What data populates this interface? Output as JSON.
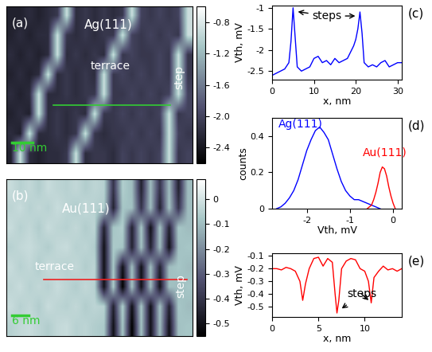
{
  "chart_data": [
    {
      "type": "heatmap",
      "panel": "(a)",
      "title": "Ag(111)",
      "annotations": [
        "terrace",
        "step",
        "10 nm"
      ],
      "tick_labels": false,
      "cells": [
        [
          -2.3,
          -2.3,
          -2.2,
          -2.3,
          -2.2,
          -2.1,
          -0.9,
          -2.2,
          -2.1,
          -2.2,
          -2.1,
          -2.2,
          -2.1,
          -0.9,
          -2.0,
          -2.1,
          -2.0,
          -2.1,
          -2.0,
          -0.9
        ],
        [
          -2.3,
          -2.2,
          -2.3,
          -2.2,
          -2.2,
          -0.9,
          -2.1,
          -2.2,
          -2.1,
          -2.2,
          -2.1,
          -2.1,
          -0.9,
          -2.0,
          -2.1,
          -2.0,
          -2.1,
          -2.0,
          -2.1,
          -0.9
        ],
        [
          -2.2,
          -2.3,
          -2.2,
          -2.3,
          -2.2,
          -0.9,
          -2.2,
          -2.1,
          -2.2,
          -2.1,
          -2.2,
          -0.9,
          -2.1,
          -2.0,
          -2.1,
          -2.1,
          -2.0,
          -2.1,
          -0.9,
          -2.1
        ],
        [
          -2.3,
          -2.2,
          -2.3,
          -2.2,
          -0.9,
          -2.2,
          -2.1,
          -2.2,
          -2.1,
          -2.2,
          -0.9,
          -2.1,
          -2.0,
          -2.1,
          -2.0,
          -2.1,
          -2.0,
          -2.1,
          -0.9,
          -2.1
        ],
        [
          -2.2,
          -2.3,
          -2.2,
          -0.9,
          -2.2,
          -2.2,
          -2.1,
          -2.2,
          -2.1,
          -2.1,
          -0.9,
          -2.1,
          -2.1,
          -2.0,
          -2.1,
          -2.0,
          -2.1,
          -2.0,
          -0.9,
          -2.0
        ],
        [
          -2.3,
          -2.2,
          -2.3,
          -0.9,
          -2.2,
          -2.1,
          -2.2,
          -2.1,
          -2.2,
          -0.9,
          -2.1,
          -2.1,
          -2.0,
          -2.1,
          -2.0,
          -2.1,
          -2.0,
          -0.9,
          -2.1,
          -2.0
        ],
        [
          -2.2,
          -2.3,
          -0.9,
          -2.2,
          -2.2,
          -2.1,
          -2.2,
          -2.1,
          -0.9,
          -2.1,
          -2.2,
          -2.1,
          -2.1,
          -2.0,
          -2.1,
          -2.0,
          -2.1,
          -0.9,
          -2.0,
          -2.1
        ],
        [
          -2.3,
          -0.9,
          -2.2,
          -2.3,
          -2.2,
          -2.2,
          -2.1,
          -0.9,
          -2.2,
          -2.1,
          -2.1,
          -2.2,
          -2.0,
          -2.1,
          -2.0,
          -2.1,
          -2.0,
          -0.9,
          -2.1,
          -2.0
        ]
      ],
      "colorbar_range": [
        -2.6,
        -0.6
      ],
      "colorbar_ticks": [
        -0.8,
        -1.2,
        -1.6,
        -2.0,
        -2.4
      ]
    },
    {
      "type": "heatmap",
      "panel": "(b)",
      "title": "Au(111)",
      "annotations": [
        "terrace",
        "step",
        "6 nm"
      ],
      "tick_labels": false,
      "cells": [
        [
          -0.02,
          -0.05,
          -0.03,
          -0.06,
          -0.02,
          -0.04,
          -0.05,
          -0.03,
          -0.06,
          -0.04,
          -0.05,
          -0.4,
          -0.06,
          -0.1,
          -0.45,
          -0.1,
          -0.4,
          -0.1,
          -0.45,
          -0.1
        ],
        [
          -0.04,
          -0.02,
          -0.05,
          -0.03,
          -0.05,
          -0.02,
          -0.04,
          -0.06,
          -0.03,
          -0.05,
          -0.06,
          -0.45,
          -0.08,
          -0.09,
          -0.4,
          -0.1,
          -0.45,
          -0.09,
          -0.4,
          -0.1
        ],
        [
          -0.02,
          -0.05,
          -0.03,
          -0.06,
          -0.02,
          -0.04,
          -0.05,
          -0.03,
          -0.06,
          -0.04,
          -0.45,
          -0.08,
          -0.06,
          -0.45,
          -0.08,
          -0.5,
          -0.09,
          -0.45,
          -0.08,
          -0.1
        ],
        [
          -0.05,
          -0.03,
          -0.02,
          -0.04,
          -0.06,
          -0.03,
          -0.02,
          -0.05,
          -0.04,
          -0.06,
          -0.5,
          -0.07,
          -0.08,
          -0.45,
          -0.09,
          -0.45,
          -0.1,
          -0.5,
          -0.09,
          -0.08
        ],
        [
          -0.02,
          -0.05,
          -0.03,
          -0.06,
          -0.02,
          -0.04,
          -0.05,
          -0.03,
          -0.06,
          -0.04,
          -0.5,
          -0.08,
          -0.5,
          -0.1,
          -0.5,
          -0.1,
          -0.45,
          -0.1,
          -0.08,
          -0.1
        ],
        [
          -0.04,
          -0.02,
          -0.05,
          -0.03,
          -0.05,
          -0.02,
          -0.04,
          -0.06,
          -0.03,
          -0.05,
          -0.5,
          -0.07,
          -0.55,
          -0.09,
          -0.5,
          -0.1,
          -0.5,
          -0.09,
          -0.1,
          -0.08
        ],
        [
          -0.02,
          -0.05,
          -0.03,
          -0.06,
          -0.02,
          -0.04,
          -0.05,
          -0.03,
          -0.06,
          -0.04,
          -0.05,
          -0.45,
          -0.06,
          -0.5,
          -0.08,
          -0.5,
          -0.09,
          -0.45,
          -0.08,
          -0.1
        ],
        [
          -0.05,
          -0.03,
          -0.02,
          -0.04,
          -0.06,
          -0.03,
          -0.02,
          -0.05,
          -0.04,
          -0.06,
          -0.07,
          -0.5,
          -0.08,
          -0.55,
          -0.09,
          -0.5,
          -0.1,
          -0.5,
          -0.09,
          -0.08
        ]
      ],
      "colorbar_range": [
        -0.55,
        0.08
      ],
      "colorbar_ticks": [
        0,
        -0.1,
        -0.2,
        -0.3,
        -0.4,
        -0.5
      ]
    },
    {
      "type": "line",
      "panel": "(c)",
      "x_label": "x, nm",
      "y_label": "Vth, mV",
      "annotations": [
        "steps"
      ],
      "color": "blue",
      "x": [
        0,
        1,
        2,
        3,
        4,
        4.5,
        5,
        5.5,
        6,
        7,
        8,
        9,
        10,
        11,
        12,
        13,
        14,
        15,
        16,
        17,
        18,
        19,
        19.5,
        20,
        20.5,
        21,
        21.5,
        22,
        23,
        24,
        25,
        26,
        27,
        28,
        29,
        30,
        31
      ],
      "values": [
        -2.6,
        -2.55,
        -2.5,
        -2.45,
        -2.3,
        -1.8,
        -1.0,
        -1.7,
        -2.4,
        -2.5,
        -2.45,
        -2.4,
        -2.2,
        -2.15,
        -2.3,
        -2.25,
        -2.35,
        -2.2,
        -2.3,
        -2.25,
        -2.2,
        -2.0,
        -1.9,
        -1.75,
        -1.5,
        -1.1,
        -1.6,
        -2.3,
        -2.4,
        -2.35,
        -2.4,
        -2.3,
        -2.25,
        -2.4,
        -2.35,
        -2.3,
        -2.3
      ],
      "xlim": [
        0,
        31
      ],
      "ylim": [
        -2.7,
        -0.95
      ],
      "xticks": [
        0,
        10,
        20,
        30
      ],
      "yticks": [
        -1,
        -1.5,
        -2,
        -2.5
      ]
    },
    {
      "type": "line",
      "panel": "(d)",
      "x_label": "Vth, mV",
      "y_label": "counts",
      "series": [
        {
          "name": "Ag(111)",
          "color": "blue",
          "x": [
            -2.7,
            -2.6,
            -2.5,
            -2.4,
            -2.3,
            -2.2,
            -2.1,
            -2.0,
            -1.9,
            -1.8,
            -1.7,
            -1.6,
            -1.5,
            -1.4,
            -1.3,
            -1.2,
            -1.1,
            -1.0,
            -0.9,
            -0.8,
            -0.7,
            -0.6,
            -0.5,
            -0.4,
            -0.3
          ],
          "values": [
            0,
            0.01,
            0.03,
            0.06,
            0.1,
            0.16,
            0.24,
            0.32,
            0.38,
            0.43,
            0.45,
            0.42,
            0.38,
            0.3,
            0.22,
            0.15,
            0.1,
            0.07,
            0.05,
            0.05,
            0.04,
            0.03,
            0.02,
            0.01,
            0
          ]
        },
        {
          "name": "Au(111)",
          "color": "red",
          "x": [
            -0.6,
            -0.5,
            -0.45,
            -0.4,
            -0.35,
            -0.3,
            -0.25,
            -0.2,
            -0.15,
            -0.1,
            -0.05,
            0,
            0.05
          ],
          "values": [
            0,
            0.02,
            0.05,
            0.09,
            0.14,
            0.2,
            0.23,
            0.22,
            0.18,
            0.12,
            0.07,
            0.03,
            0
          ]
        }
      ],
      "xlim": [
        -2.8,
        0.2
      ],
      "ylim": [
        0,
        0.5
      ],
      "xticks": [
        -2,
        -1,
        0
      ],
      "yticks": [
        0,
        0.2,
        0.4
      ]
    },
    {
      "type": "line",
      "panel": "(e)",
      "x_label": "x, nm",
      "y_label": "Vth, mV",
      "annotations": [
        "steps"
      ],
      "color": "red",
      "x": [
        0,
        0.5,
        1,
        1.5,
        2,
        2.5,
        3,
        3.3,
        3.6,
        4,
        4.5,
        5,
        5.5,
        6,
        6.5,
        6.8,
        7,
        7.2,
        7.5,
        8,
        8.5,
        9,
        9.5,
        10,
        10.4,
        10.7,
        11,
        11.5,
        12,
        12.5,
        13,
        13.5,
        14
      ],
      "values": [
        -0.2,
        -0.2,
        -0.21,
        -0.19,
        -0.2,
        -0.22,
        -0.3,
        -0.45,
        -0.32,
        -0.2,
        -0.12,
        -0.11,
        -0.18,
        -0.12,
        -0.15,
        -0.4,
        -0.55,
        -0.45,
        -0.2,
        -0.14,
        -0.12,
        -0.13,
        -0.2,
        -0.22,
        -0.3,
        -0.47,
        -0.27,
        -0.22,
        -0.18,
        -0.21,
        -0.2,
        -0.22,
        -0.2
      ],
      "xlim": [
        0,
        14
      ],
      "ylim": [
        -0.58,
        -0.08
      ],
      "xticks": [
        0,
        5,
        10
      ],
      "yticks": [
        -0.1,
        -0.2,
        -0.3,
        -0.4,
        -0.5
      ]
    }
  ]
}
